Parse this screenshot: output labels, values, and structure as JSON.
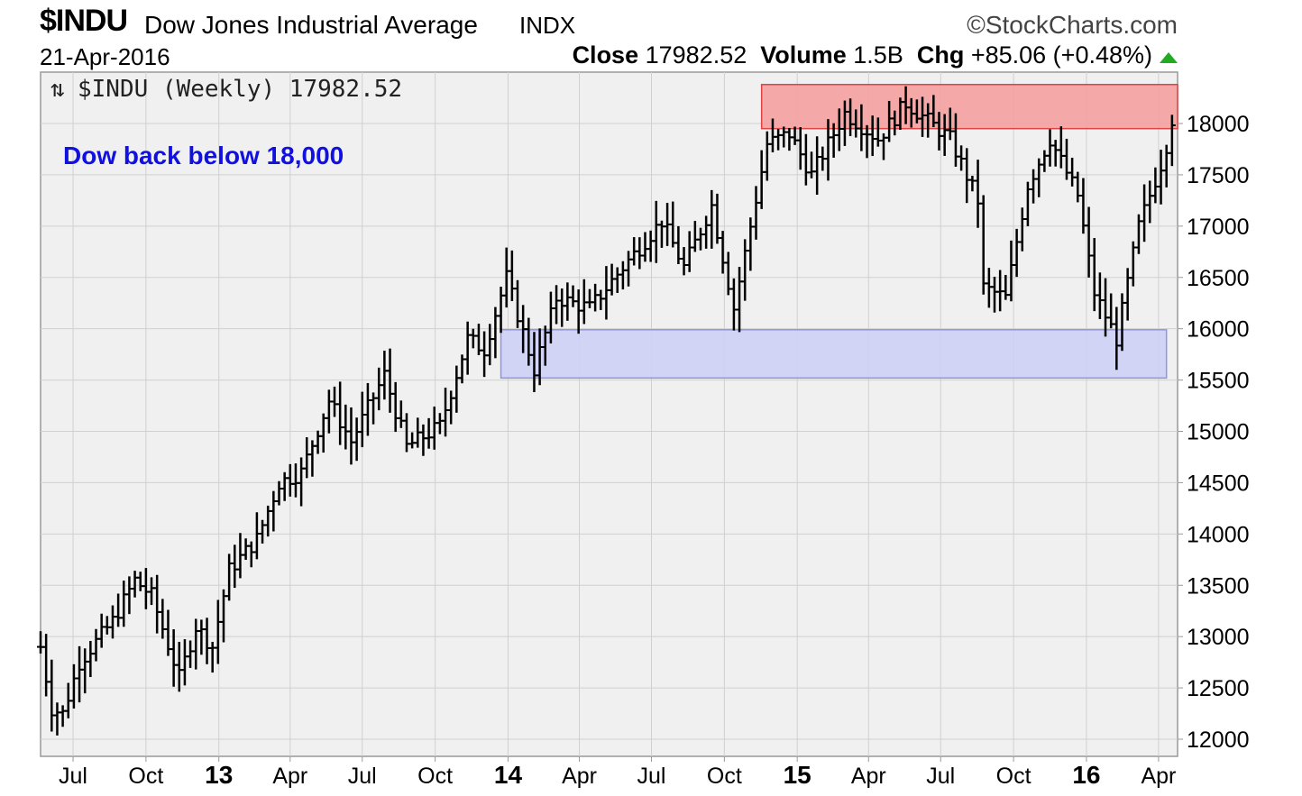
{
  "header": {
    "symbol": "$INDU",
    "name": "Dow Jones Industrial Average",
    "exchange": "INDX",
    "brand": "StockCharts.com",
    "date": "21-Apr-2016",
    "close_label": "Close",
    "close_value": "17982.52",
    "volume_label": "Volume",
    "volume_value": "1.5B",
    "chg_label": "Chg",
    "chg_value": "+85.06 (+0.48%)",
    "chg_direction": "up",
    "chg_color": "#22aa22"
  },
  "legend": {
    "icon": "bar-chart-icon",
    "text": "$INDU (Weekly) 17982.52"
  },
  "chart_data": {
    "type": "ohlc",
    "title": "$INDU (Weekly) 17982.52",
    "annotation": "Dow back below 18,000",
    "ylim": [
      11850,
      18400
    ],
    "xlim": [
      "2012-05-21",
      "2016-04-25"
    ],
    "y_axis_position": "right",
    "grid": true,
    "yticks": [
      12000,
      12500,
      13000,
      13500,
      14000,
      14500,
      15000,
      15500,
      16000,
      16500,
      17000,
      17500,
      18000
    ],
    "xticks": [
      {
        "label": "Jul",
        "date": "2012-07-01",
        "major": false
      },
      {
        "label": "Oct",
        "date": "2012-10-01",
        "major": false
      },
      {
        "label": "13",
        "date": "2013-01-01",
        "major": true
      },
      {
        "label": "Apr",
        "date": "2013-04-01",
        "major": false
      },
      {
        "label": "Jul",
        "date": "2013-07-01",
        "major": false
      },
      {
        "label": "Oct",
        "date": "2013-10-01",
        "major": false
      },
      {
        "label": "14",
        "date": "2014-01-01",
        "major": true
      },
      {
        "label": "Apr",
        "date": "2014-04-01",
        "major": false
      },
      {
        "label": "Jul",
        "date": "2014-07-01",
        "major": false
      },
      {
        "label": "Oct",
        "date": "2014-10-01",
        "major": false
      },
      {
        "label": "15",
        "date": "2015-01-01",
        "major": true
      },
      {
        "label": "Apr",
        "date": "2015-04-01",
        "major": false
      },
      {
        "label": "Jul",
        "date": "2015-07-01",
        "major": false
      },
      {
        "label": "Oct",
        "date": "2015-10-01",
        "major": false
      },
      {
        "label": "16",
        "date": "2016-01-01",
        "major": true
      },
      {
        "label": "Apr",
        "date": "2016-04-01",
        "major": false
      }
    ],
    "zones": [
      {
        "name": "resistance",
        "x0": "2014-11-17",
        "x1": "2016-04-25",
        "y0": 17950,
        "y1": 18380,
        "color": "#f4a0a0",
        "border": "#dd4444"
      },
      {
        "name": "support",
        "x0": "2013-12-23",
        "x1": "2016-04-11",
        "y0": 15520,
        "y1": 15990,
        "color": "#cdd0f5",
        "border": "#8f94e6"
      }
    ],
    "weekly_close_anchors": [
      {
        "date": "2012-05-21",
        "close": 12900
      },
      {
        "date": "2012-06-04",
        "close": 12300
      },
      {
        "date": "2012-06-18",
        "close": 12250
      },
      {
        "date": "2012-07-09",
        "close": 12750
      },
      {
        "date": "2012-08-20",
        "close": 13150
      },
      {
        "date": "2012-09-17",
        "close": 13550
      },
      {
        "date": "2012-10-08",
        "close": 13400
      },
      {
        "date": "2012-11-12",
        "close": 12600
      },
      {
        "date": "2012-12-03",
        "close": 13100
      },
      {
        "date": "2012-12-24",
        "close": 12900
      },
      {
        "date": "2013-01-14",
        "close": 13650
      },
      {
        "date": "2013-02-18",
        "close": 13950
      },
      {
        "date": "2013-03-18",
        "close": 14500
      },
      {
        "date": "2013-04-15",
        "close": 14600
      },
      {
        "date": "2013-05-20",
        "close": 15300
      },
      {
        "date": "2013-06-17",
        "close": 14900
      },
      {
        "date": "2013-07-29",
        "close": 15550
      },
      {
        "date": "2013-08-26",
        "close": 14850
      },
      {
        "date": "2013-10-07",
        "close": 15050
      },
      {
        "date": "2013-11-11",
        "close": 15900
      },
      {
        "date": "2013-12-02",
        "close": 15800
      },
      {
        "date": "2013-12-30",
        "close": 16500
      },
      {
        "date": "2014-02-03",
        "close": 15600
      },
      {
        "date": "2014-03-03",
        "close": 16300
      },
      {
        "date": "2014-04-14",
        "close": 16200
      },
      {
        "date": "2014-05-26",
        "close": 16600
      },
      {
        "date": "2014-07-14",
        "close": 17050
      },
      {
        "date": "2014-08-11",
        "close": 16600
      },
      {
        "date": "2014-09-15",
        "close": 17200
      },
      {
        "date": "2014-10-13",
        "close": 16200
      },
      {
        "date": "2014-11-24",
        "close": 17800
      },
      {
        "date": "2014-12-22",
        "close": 17900
      },
      {
        "date": "2015-01-19",
        "close": 17500
      },
      {
        "date": "2015-03-02",
        "close": 18100
      },
      {
        "date": "2015-04-13",
        "close": 17850
      },
      {
        "date": "2015-05-18",
        "close": 18200
      },
      {
        "date": "2015-07-13",
        "close": 17850
      },
      {
        "date": "2015-08-17",
        "close": 17250
      },
      {
        "date": "2015-08-24",
        "close": 16400
      },
      {
        "date": "2015-09-21",
        "close": 16300
      },
      {
        "date": "2015-10-19",
        "close": 17400
      },
      {
        "date": "2015-11-16",
        "close": 17850
      },
      {
        "date": "2015-12-21",
        "close": 17300
      },
      {
        "date": "2016-01-11",
        "close": 16350
      },
      {
        "date": "2016-02-08",
        "close": 15900
      },
      {
        "date": "2016-03-07",
        "close": 17000
      },
      {
        "date": "2016-04-04",
        "close": 17600
      },
      {
        "date": "2016-04-18",
        "close": 17982.52
      }
    ]
  }
}
